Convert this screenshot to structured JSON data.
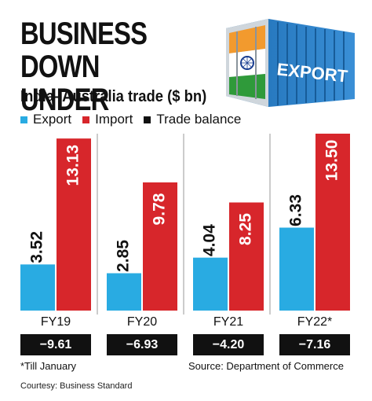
{
  "headline": "BUSINESS DOWN UNDER",
  "subtitle": "India–Australia trade ($ bn)",
  "legend": {
    "export": "Export",
    "import": "Import",
    "balance": "Trade balance"
  },
  "container_label": "EXPORT",
  "colors": {
    "export": "#29ABE2",
    "import": "#D7262B",
    "balance": "#111111"
  },
  "chart_data": {
    "type": "bar",
    "title": "India–Australia trade ($ bn)",
    "categories": [
      "FY19",
      "FY20",
      "FY21",
      "FY22*"
    ],
    "series": [
      {
        "name": "Export",
        "values": [
          3.52,
          2.85,
          4.04,
          6.33
        ],
        "labels": [
          "3.52",
          "2.85",
          "4.04",
          "6.33"
        ]
      },
      {
        "name": "Import",
        "values": [
          13.13,
          9.78,
          8.25,
          13.5
        ],
        "labels": [
          "13.13",
          "9.78",
          "8.25",
          "13.50"
        ]
      },
      {
        "name": "Trade balance",
        "values": [
          -9.61,
          -6.93,
          -4.2,
          -7.16
        ],
        "labels": [
          "-9.61",
          "-6.93",
          "-4.20",
          "-7.16"
        ]
      }
    ],
    "ylim": [
      0,
      14
    ],
    "grid": false,
    "legend_position": "top-left"
  },
  "footnote": "*Till January",
  "source": "Source: Department of Commerce",
  "courtesy": "Courtesy: Business Standard"
}
